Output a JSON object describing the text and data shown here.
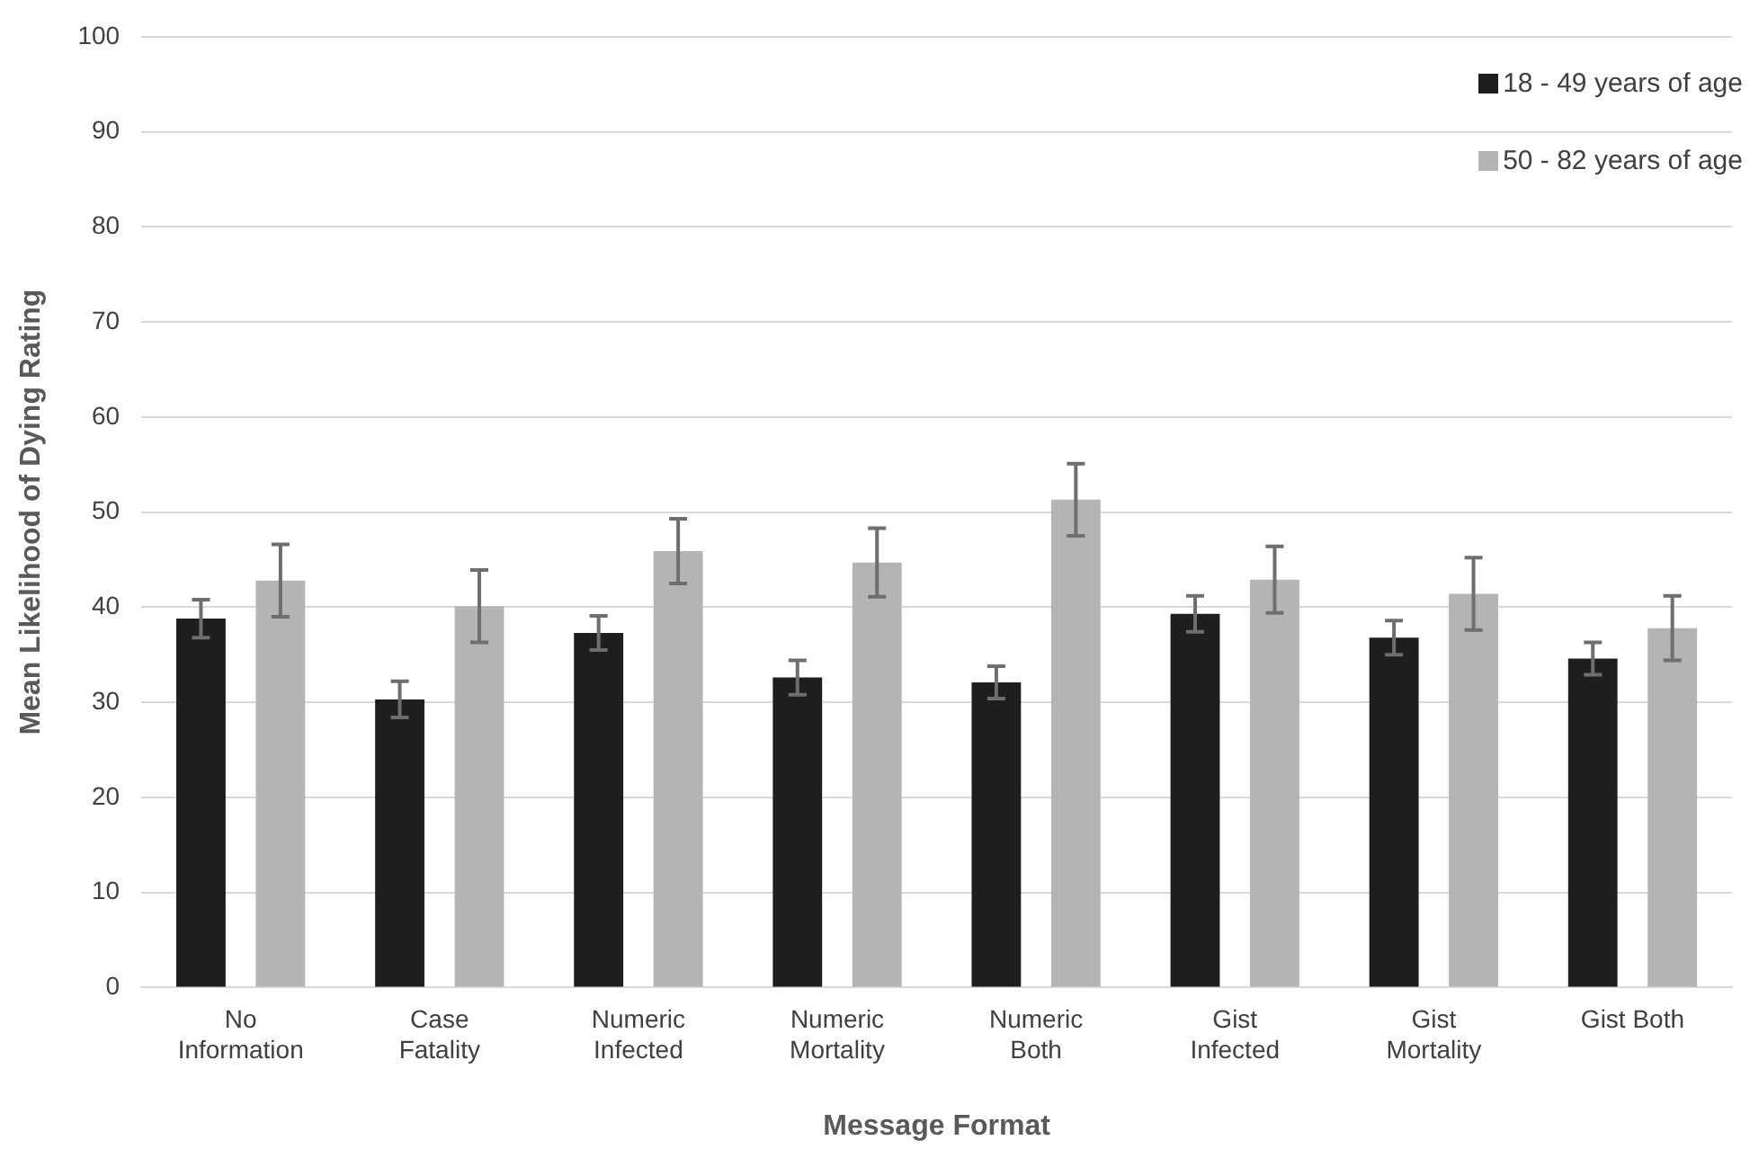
{
  "chart_data": {
    "type": "bar",
    "xlabel": "Message Format",
    "ylabel": "Mean Likelihood of Dying Rating",
    "categories": [
      "No Information",
      "Case Fatality",
      "Numeric Infected",
      "Numeric Mortality",
      "Numeric Both",
      "Gist Infected",
      "Gist Mortality",
      "Gist Both"
    ],
    "series": [
      {
        "name": "18 - 49 years of age",
        "color": "#1e1e1e",
        "values": [
          38.8,
          30.3,
          37.3,
          32.6,
          32.1,
          39.3,
          36.8,
          34.6
        ],
        "errors": [
          2.0,
          1.9,
          1.8,
          1.8,
          1.7,
          1.9,
          1.8,
          1.7
        ]
      },
      {
        "name": "50 - 82 years of age",
        "color": "#b4b4b4",
        "values": [
          42.8,
          40.1,
          45.9,
          44.7,
          51.3,
          42.9,
          41.4,
          37.8
        ],
        "errors": [
          3.8,
          3.8,
          3.4,
          3.6,
          3.8,
          3.5,
          3.8,
          3.4
        ]
      }
    ],
    "ylim": [
      0,
      100
    ],
    "yticks": [
      0,
      10,
      20,
      30,
      40,
      50,
      60,
      70,
      80,
      90,
      100
    ],
    "grid": "y",
    "legend": "top right"
  }
}
